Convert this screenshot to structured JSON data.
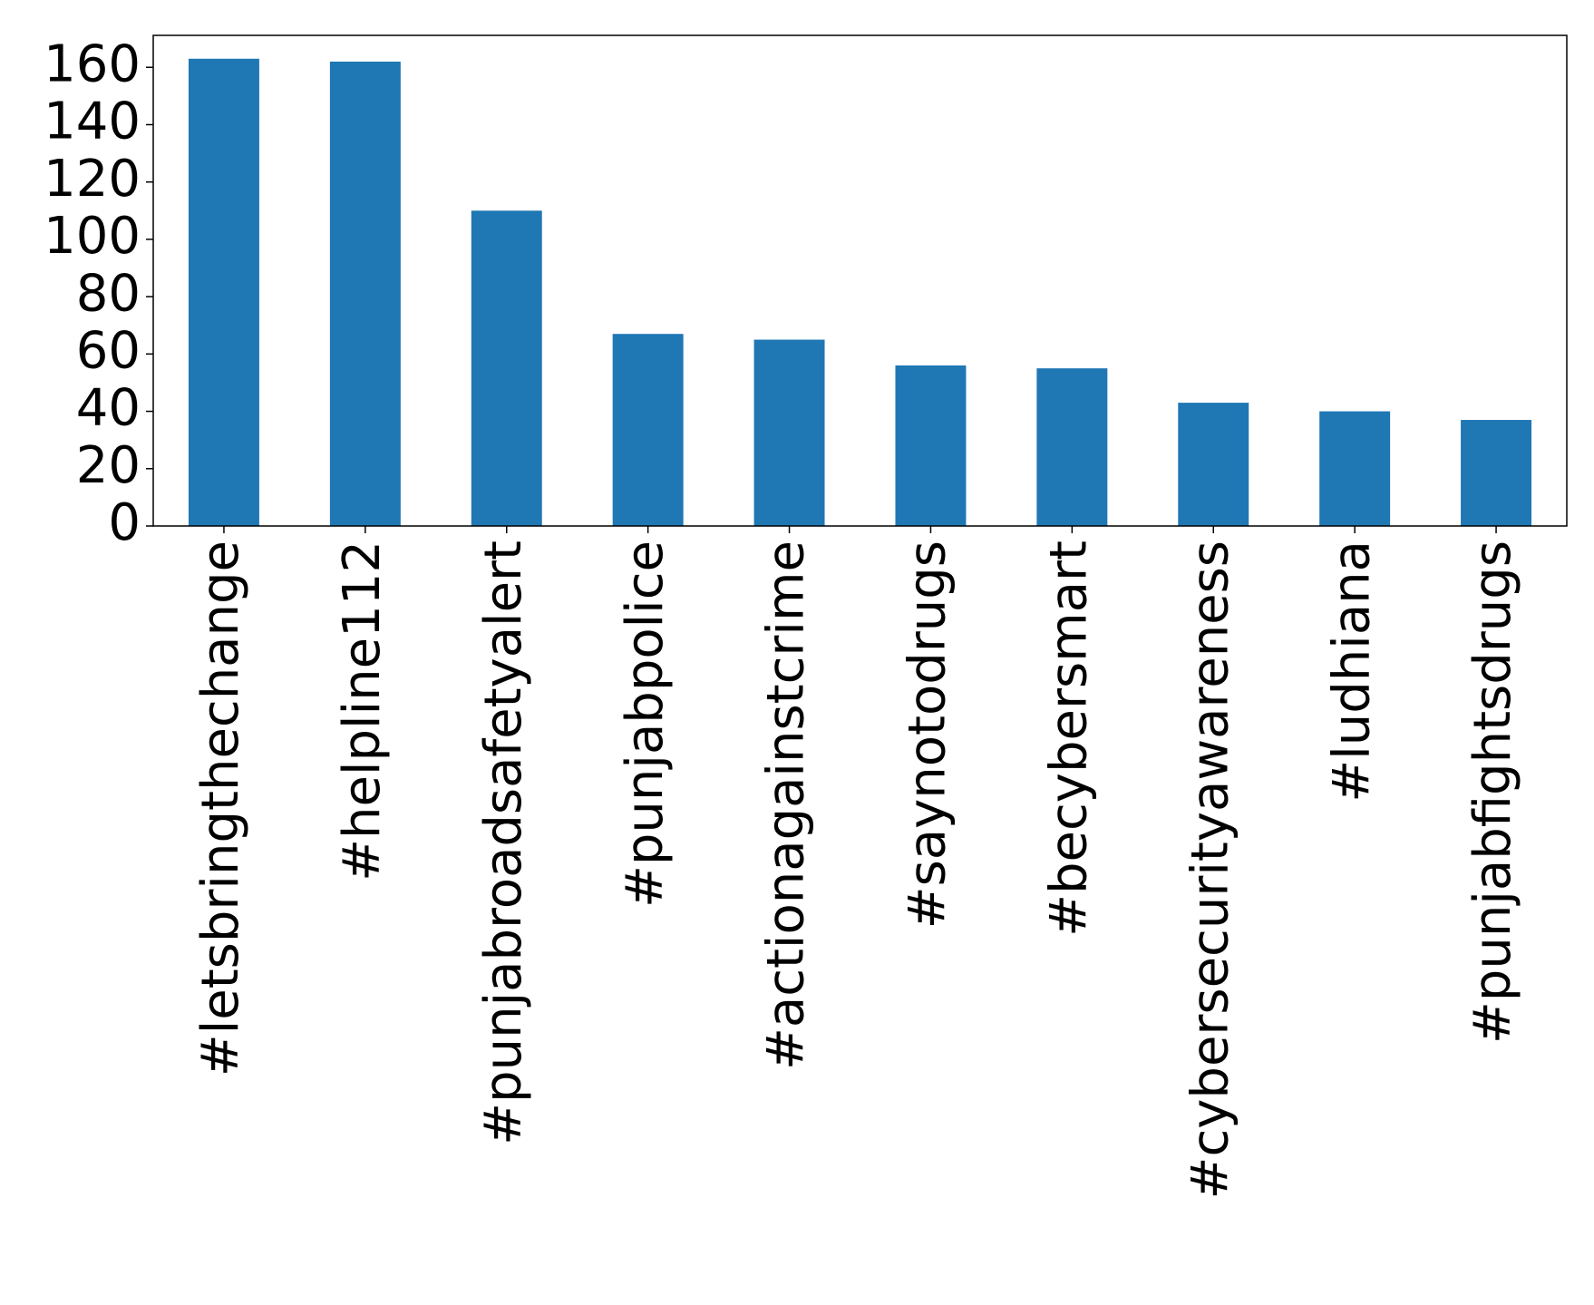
{
  "chart_data": {
    "type": "bar",
    "categories": [
      "#letsbringthechange",
      "#helpline112",
      "#punjabroadsafetyalert",
      "#punjabpolice",
      "#actionagainstcrime",
      "#saynotodrugs",
      "#becybersmart",
      "#cybersecurityawareness",
      "#ludhiana",
      "#punjabfightsdrugs"
    ],
    "values": [
      163,
      162,
      110,
      67,
      65,
      56,
      55,
      43,
      40,
      37
    ],
    "color": "#1f77b4",
    "ylim": [
      0,
      171.15
    ],
    "yticks": [
      0,
      20,
      40,
      60,
      80,
      100,
      120,
      140,
      160
    ],
    "grid": false
  }
}
